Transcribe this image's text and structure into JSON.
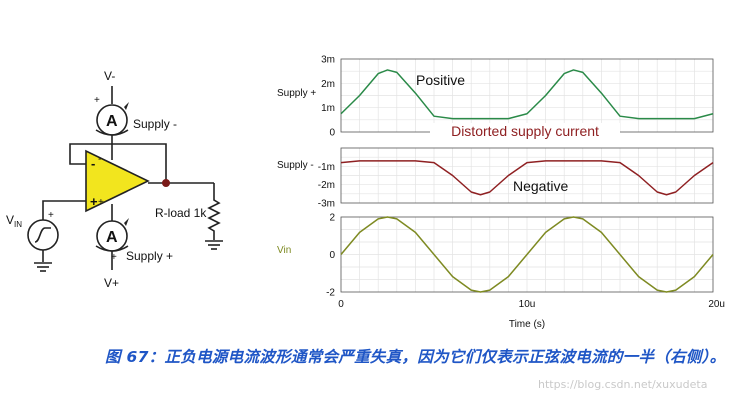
{
  "circuit": {
    "v_minus": "V-",
    "v_plus": "V+",
    "ammeter_symbol": "A",
    "supply_minus_label": "Supply -",
    "supply_plus_label": "Supply +",
    "plus_sign": "+",
    "minus_sign": "-",
    "vin_label": "V",
    "vin_sub": "IN",
    "load_label": "R-load 1k"
  },
  "colors": {
    "positive": "#2a8a48",
    "negative": "#8f2022",
    "vin": "#7e8a22",
    "opamp_fill": "#f2e51e",
    "caption": "#1f56c6"
  },
  "chart_data": [
    {
      "type": "line",
      "panel": "top",
      "ylabel": "Supply +",
      "yticks": [
        "3m",
        "2m",
        "1m",
        "0"
      ],
      "ylim": [
        0,
        3
      ],
      "annotation": "Positive",
      "x": [
        0,
        1,
        2,
        2.5,
        3,
        4,
        5,
        6,
        7,
        8,
        9,
        10,
        11,
        12,
        12.5,
        13,
        14,
        15,
        16,
        17,
        18,
        19,
        20
      ],
      "y": [
        0.75,
        1.5,
        2.4,
        2.55,
        2.45,
        1.6,
        0.65,
        0.55,
        0.55,
        0.55,
        0.55,
        0.75,
        1.5,
        2.4,
        2.55,
        2.45,
        1.6,
        0.65,
        0.55,
        0.55,
        0.55,
        0.55,
        0.75
      ]
    },
    {
      "type": "line",
      "panel": "middle",
      "ylabel": "Supply -",
      "yticks": [
        "-1m",
        "-2m",
        "-3m"
      ],
      "ylim": [
        -3,
        0
      ],
      "annotation": "Negative",
      "title": "Distorted supply current",
      "x": [
        0,
        1,
        2,
        3,
        4,
        5,
        6,
        7,
        7.5,
        8,
        9,
        10,
        11,
        12,
        13,
        14,
        15,
        16,
        17,
        17.5,
        18,
        19,
        20
      ],
      "y": [
        -0.8,
        -0.7,
        -0.7,
        -0.7,
        -0.7,
        -0.8,
        -1.5,
        -2.4,
        -2.55,
        -2.4,
        -1.5,
        -0.8,
        -0.7,
        -0.7,
        -0.7,
        -0.7,
        -0.8,
        -1.5,
        -2.4,
        -2.55,
        -2.4,
        -1.5,
        -0.8
      ]
    },
    {
      "type": "line",
      "panel": "bottom",
      "ylabel": "Vin",
      "yticks": [
        "2",
        "0",
        "-2"
      ],
      "ylim": [
        -2,
        2
      ],
      "xlabel": "Time (s)",
      "xticks": [
        "0",
        "10u",
        "20u"
      ],
      "xlim": [
        0,
        20
      ],
      "x": [
        0,
        1,
        2,
        2.5,
        3,
        4,
        5,
        6,
        7,
        7.5,
        8,
        9,
        10,
        11,
        12,
        12.5,
        13,
        14,
        15,
        16,
        17,
        17.5,
        18,
        19,
        20
      ],
      "y": [
        0,
        1.18,
        1.9,
        2,
        1.9,
        1.18,
        0,
        -1.18,
        -1.9,
        -2,
        -1.9,
        -1.18,
        0,
        1.18,
        1.9,
        2,
        1.9,
        1.18,
        0,
        -1.18,
        -1.9,
        -2,
        -1.9,
        -1.18,
        0
      ]
    }
  ],
  "caption": "图 67：正负电源电流波形通常会严重失真，因为它们仅表示正弦波电流的一半（右侧）。",
  "watermark": "https://blog.csdn.net/xuxudeta"
}
